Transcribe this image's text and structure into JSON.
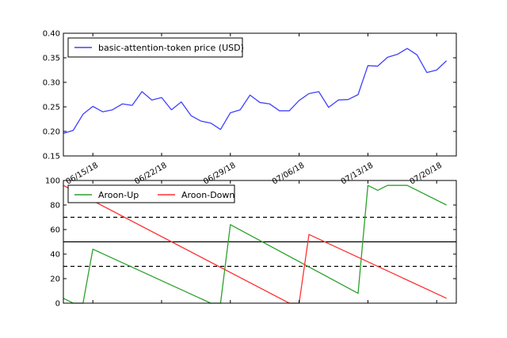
{
  "chart_data": [
    {
      "type": "line",
      "legend_placement": "top-left",
      "ylim": [
        0.15,
        0.4
      ],
      "yticks": [
        "0.15",
        "0.20",
        "0.25",
        "0.30",
        "0.35",
        "0.40"
      ],
      "x_start": "2018-06-12",
      "x_end": "2018-07-22",
      "xticks": [
        {
          "date": "2018-06-15",
          "label": "06/15/18"
        },
        {
          "date": "2018-06-22",
          "label": "06/22/18"
        },
        {
          "date": "2018-06-29",
          "label": "06/29/18"
        },
        {
          "date": "2018-07-06",
          "label": "07/06/18"
        },
        {
          "date": "2018-07-13",
          "label": "07/13/18"
        },
        {
          "date": "2018-07-20",
          "label": "07/20/18"
        }
      ],
      "series": [
        {
          "name": "basic-attention-token price (USD)",
          "color": "#4040ff",
          "points": [
            [
              "2018-06-12",
              0.196
            ],
            [
              "2018-06-13",
              0.202
            ],
            [
              "2018-06-14",
              0.235
            ],
            [
              "2018-06-15",
              0.251
            ],
            [
              "2018-06-16",
              0.24
            ],
            [
              "2018-06-17",
              0.244
            ],
            [
              "2018-06-18",
              0.256
            ],
            [
              "2018-06-19",
              0.253
            ],
            [
              "2018-06-20",
              0.281
            ],
            [
              "2018-06-21",
              0.264
            ],
            [
              "2018-06-22",
              0.269
            ],
            [
              "2018-06-23",
              0.244
            ],
            [
              "2018-06-24",
              0.26
            ],
            [
              "2018-06-25",
              0.232
            ],
            [
              "2018-06-26",
              0.221
            ],
            [
              "2018-06-27",
              0.217
            ],
            [
              "2018-06-28",
              0.204
            ],
            [
              "2018-06-29",
              0.238
            ],
            [
              "2018-06-30",
              0.244
            ],
            [
              "2018-07-01",
              0.274
            ],
            [
              "2018-07-02",
              0.259
            ],
            [
              "2018-07-03",
              0.256
            ],
            [
              "2018-07-04",
              0.242
            ],
            [
              "2018-07-05",
              0.242
            ],
            [
              "2018-07-06",
              0.263
            ],
            [
              "2018-07-07",
              0.277
            ],
            [
              "2018-07-08",
              0.281
            ],
            [
              "2018-07-09",
              0.249
            ],
            [
              "2018-07-10",
              0.264
            ],
            [
              "2018-07-11",
              0.265
            ],
            [
              "2018-07-12",
              0.275
            ],
            [
              "2018-07-13",
              0.334
            ],
            [
              "2018-07-14",
              0.333
            ],
            [
              "2018-07-15",
              0.351
            ],
            [
              "2018-07-16",
              0.357
            ],
            [
              "2018-07-17",
              0.369
            ],
            [
              "2018-07-18",
              0.356
            ],
            [
              "2018-07-19",
              0.32
            ],
            [
              "2018-07-20",
              0.325
            ],
            [
              "2018-07-21",
              0.344
            ]
          ]
        }
      ]
    },
    {
      "type": "line",
      "legend_placement": "top-left",
      "ylim": [
        0,
        100
      ],
      "yticks": [
        "0",
        "20",
        "40",
        "60",
        "80",
        "100"
      ],
      "x_start": "2018-06-12",
      "x_end": "2018-07-22",
      "reference_lines": [
        {
          "y": 70,
          "style": "dashed"
        },
        {
          "y": 50,
          "style": "solid"
        },
        {
          "y": 30,
          "style": "dashed"
        }
      ],
      "series": [
        {
          "name": "Aroon-Up",
          "color": "#2ca02c",
          "points": [
            [
              "2018-06-12",
              4
            ],
            [
              "2018-06-13",
              0
            ],
            [
              "2018-06-14",
              0
            ],
            [
              "2018-06-15",
              44
            ],
            [
              "2018-06-27",
              0
            ],
            [
              "2018-06-28",
              0
            ],
            [
              "2018-06-29",
              64
            ],
            [
              "2018-07-12",
              8
            ],
            [
              "2018-07-13",
              96
            ],
            [
              "2018-07-14",
              92
            ],
            [
              "2018-07-15",
              96
            ],
            [
              "2018-07-17",
              96
            ],
            [
              "2018-07-21",
              80
            ]
          ]
        },
        {
          "name": "Aroon-Down",
          "color": "#ff3030",
          "points": [
            [
              "2018-06-12",
              96
            ],
            [
              "2018-07-05",
              0
            ],
            [
              "2018-07-06",
              0
            ],
            [
              "2018-07-07",
              56
            ],
            [
              "2018-07-21",
              4
            ]
          ]
        }
      ]
    }
  ]
}
